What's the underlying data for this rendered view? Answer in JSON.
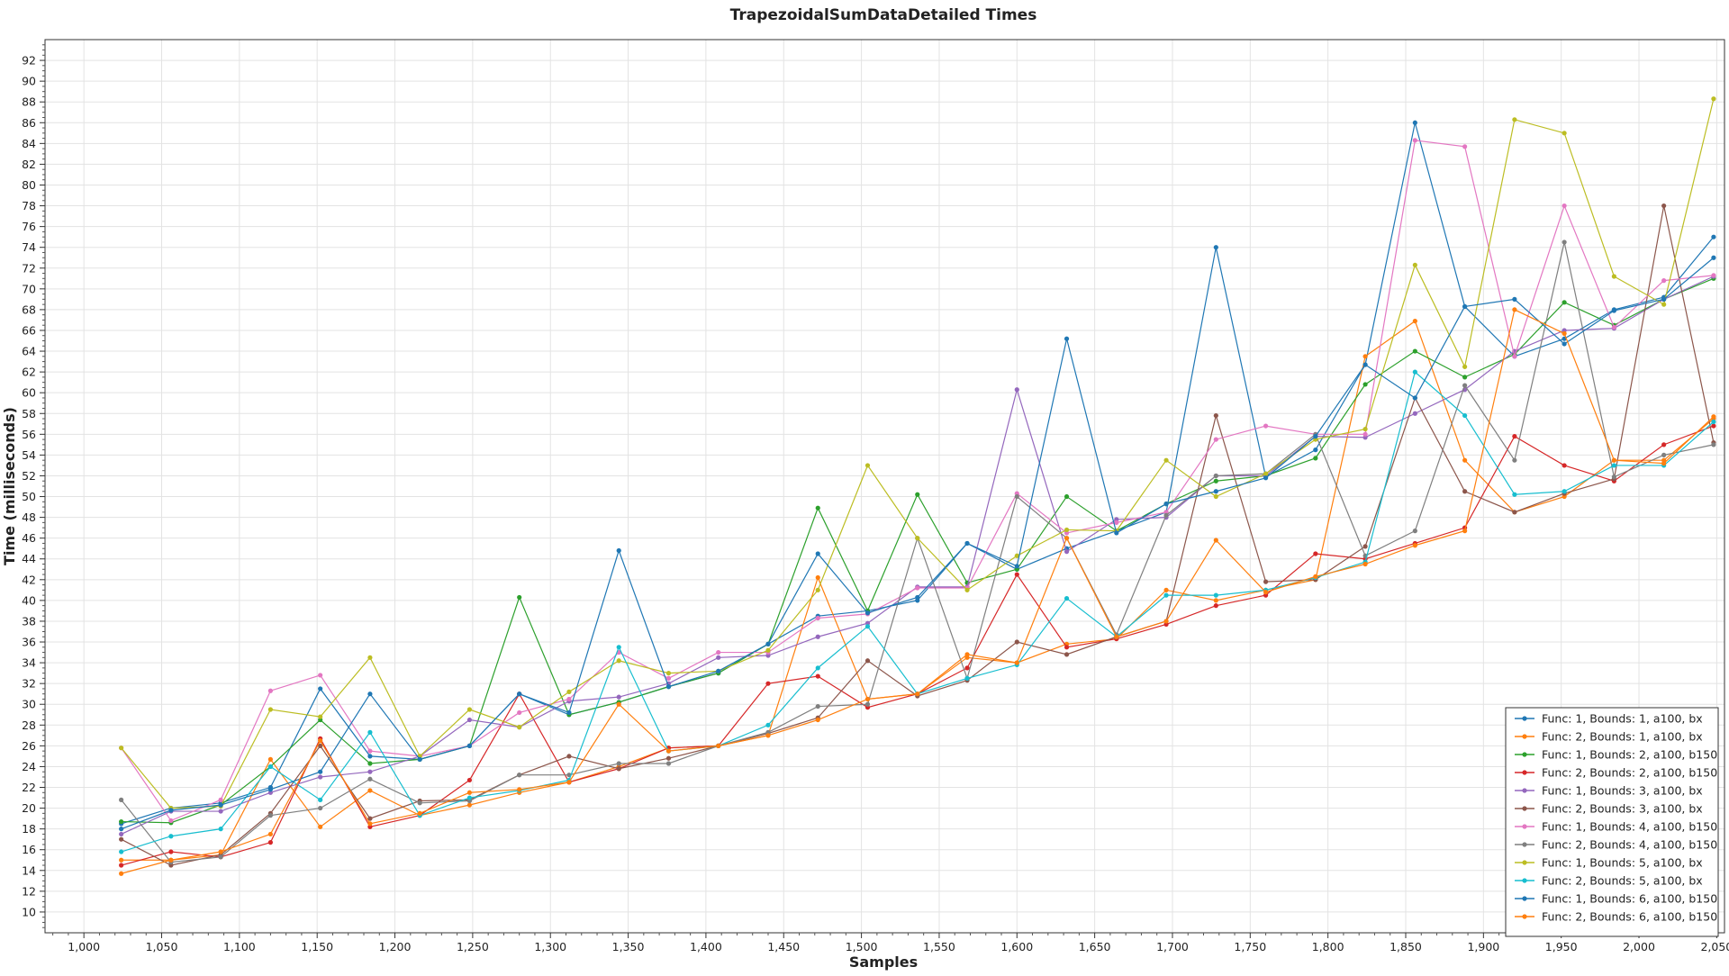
{
  "chart_data": {
    "type": "line",
    "title": "TrapezoidalSumDataDetailed Times",
    "xlabel": "Samples",
    "ylabel": "Time (milliseconds)",
    "xlim": [
      975,
      2055
    ],
    "ylim": [
      8,
      94
    ],
    "x_ticks": [
      1000,
      1050,
      1100,
      1150,
      1200,
      1250,
      1300,
      1350,
      1400,
      1450,
      1500,
      1550,
      1600,
      1650,
      1700,
      1750,
      1800,
      1850,
      1900,
      1950,
      2000,
      2050
    ],
    "x_tick_labels": [
      "1,000",
      "1,050",
      "1,100",
      "1,150",
      "1,200",
      "1,250",
      "1,300",
      "1,350",
      "1,400",
      "1,450",
      "1,500",
      "1,550",
      "1,600",
      "1,650",
      "1,700",
      "1,750",
      "1,800",
      "1,850",
      "1,900",
      "1,950",
      "2,000",
      "2,050"
    ],
    "y_ticks": [
      10,
      12,
      14,
      16,
      18,
      20,
      22,
      24,
      26,
      28,
      30,
      32,
      34,
      36,
      38,
      40,
      42,
      44,
      46,
      48,
      50,
      52,
      54,
      56,
      58,
      60,
      62,
      64,
      66,
      68,
      70,
      72,
      74,
      76,
      78,
      80,
      82,
      84,
      86,
      88,
      90,
      92
    ],
    "grid": true,
    "legend_position": "bottom-right",
    "x": [
      1024,
      1056,
      1088,
      1120,
      1152,
      1184,
      1216,
      1248,
      1280,
      1312,
      1344,
      1376,
      1408,
      1440,
      1472,
      1504,
      1536,
      1568,
      1600,
      1632,
      1664,
      1696,
      1728,
      1760,
      1792,
      1824,
      1856,
      1888,
      1920,
      1952,
      1984,
      2016,
      2048
    ],
    "series": [
      {
        "name": "Func: 1, Bounds: 1, a100, bx",
        "color": "#1f77b4",
        "values": [
          18.5,
          20.0,
          20.5,
          22.0,
          31.5,
          25.0,
          24.7,
          26.0,
          31.0,
          29.0,
          30.2,
          31.7,
          33.0,
          35.8,
          38.5,
          39.0,
          40.0,
          45.5,
          43.0,
          45.0,
          46.7,
          48.5,
          74.0,
          51.9,
          54.5,
          62.7,
          86.0,
          68.3,
          63.5,
          65.2,
          68.0,
          69.2,
          75.0
        ]
      },
      {
        "name": "Func: 2, Bounds: 1, a100, bx",
        "color": "#ff7f0e",
        "values": [
          15.0,
          15.0,
          15.5,
          24.7,
          18.2,
          21.7,
          19.3,
          20.3,
          21.5,
          22.5,
          24.0,
          25.8,
          26.0,
          27.0,
          42.2,
          30.5,
          31.0,
          34.5,
          34.0,
          35.8,
          36.3,
          41.0,
          40.0,
          41.0,
          42.0,
          63.5,
          66.9,
          53.5,
          48.5,
          50.0,
          53.5,
          53.5,
          57.5
        ]
      },
      {
        "name": "Func: 1, Bounds: 2, a100, b150",
        "color": "#2ca02c",
        "values": [
          18.7,
          18.6,
          20.3,
          24.0,
          28.5,
          24.3,
          24.7,
          26.0,
          40.3,
          29.0,
          30.2,
          31.7,
          33.0,
          35.8,
          48.9,
          39.0,
          50.2,
          41.7,
          43.0,
          50.0,
          46.7,
          49.3,
          51.5,
          52.0,
          53.7,
          60.8,
          64.0,
          61.5,
          63.7,
          68.7,
          66.5,
          69.0,
          71.0
        ]
      },
      {
        "name": "Func: 2, Bounds: 2, a100, b150",
        "color": "#d62728",
        "values": [
          14.5,
          15.8,
          15.3,
          16.7,
          26.7,
          18.2,
          19.3,
          22.7,
          31.0,
          22.5,
          23.8,
          25.8,
          26.0,
          32.0,
          32.7,
          29.7,
          31.0,
          33.5,
          42.5,
          35.5,
          36.3,
          37.7,
          39.5,
          40.5,
          44.5,
          44.0,
          45.5,
          47.0,
          55.8,
          53.0,
          51.5,
          55.0,
          56.8
        ]
      },
      {
        "name": "Func: 1, Bounds: 3, a100, bx",
        "color": "#9467bd",
        "values": [
          17.5,
          19.7,
          19.7,
          21.5,
          23.0,
          23.5,
          25.0,
          28.5,
          27.8,
          30.3,
          30.7,
          32.0,
          34.5,
          34.7,
          36.5,
          37.8,
          41.3,
          41.3,
          60.3,
          44.7,
          47.8,
          48.0,
          52.0,
          52.0,
          55.8,
          55.7,
          58.0,
          60.3,
          64.0,
          66.0,
          66.2,
          69.0,
          71.2
        ]
      },
      {
        "name": "Func: 2, Bounds: 3, a100, bx",
        "color": "#8c564b",
        "values": [
          17.0,
          14.5,
          15.5,
          19.5,
          26.0,
          19.0,
          20.7,
          20.8,
          23.2,
          25.0,
          23.8,
          24.8,
          26.0,
          27.2,
          28.7,
          34.2,
          30.8,
          32.3,
          36.0,
          34.8,
          36.5,
          38.0,
          57.8,
          41.8,
          42.0,
          45.2,
          59.5,
          50.5,
          48.5,
          50.3,
          51.7,
          78.0,
          55.2
        ]
      },
      {
        "name": "Func: 1, Bounds: 4, a100, b150",
        "color": "#e377c2",
        "values": [
          25.8,
          18.8,
          20.8,
          31.3,
          32.8,
          25.5,
          25.0,
          26.0,
          29.2,
          30.5,
          35.0,
          32.5,
          35.0,
          35.0,
          38.3,
          38.7,
          41.2,
          41.2,
          50.3,
          46.5,
          47.5,
          48.5,
          55.5,
          56.8,
          56.0,
          56.0,
          84.3,
          83.7,
          63.5,
          78.0,
          66.3,
          70.8,
          71.3
        ]
      },
      {
        "name": "Func: 2, Bounds: 4, a100, b150",
        "color": "#7f7f7f",
        "values": [
          20.8,
          14.8,
          15.3,
          19.3,
          20.0,
          22.8,
          20.5,
          20.7,
          23.2,
          23.2,
          24.3,
          24.3,
          26.0,
          27.3,
          29.8,
          30.0,
          46.0,
          32.5,
          50.0,
          46.0,
          36.7,
          48.2,
          52.0,
          52.2,
          56.0,
          44.3,
          46.7,
          60.7,
          53.5,
          74.5,
          51.9,
          54.0,
          55.0
        ]
      },
      {
        "name": "Func: 1, Bounds: 5, a100, bx",
        "color": "#bcbd22",
        "values": [
          25.8,
          20.0,
          20.2,
          29.5,
          28.8,
          34.5,
          25.0,
          29.5,
          27.8,
          31.2,
          34.2,
          33.0,
          33.2,
          35.2,
          41.0,
          53.0,
          46.0,
          41.0,
          44.3,
          46.8,
          46.7,
          53.5,
          50.0,
          52.2,
          55.5,
          56.5,
          72.3,
          62.5,
          86.3,
          85.0,
          71.2,
          68.5,
          88.3
        ]
      },
      {
        "name": "Func: 2, Bounds: 5, a100, bx",
        "color": "#17becf",
        "values": [
          15.8,
          17.3,
          18.0,
          24.0,
          20.8,
          27.3,
          19.3,
          21.0,
          21.7,
          22.7,
          35.5,
          25.5,
          26.0,
          28.0,
          33.5,
          37.5,
          31.0,
          32.5,
          33.8,
          40.2,
          36.5,
          40.5,
          40.5,
          41.0,
          42.2,
          43.7,
          62.0,
          57.8,
          50.2,
          50.5,
          53.0,
          53.0,
          57.2
        ]
      },
      {
        "name": "Func: 1, Bounds: 6, a100, b150",
        "color": "#1f77b4",
        "values": [
          18.0,
          19.8,
          20.3,
          21.8,
          23.5,
          31.0,
          24.7,
          26.0,
          31.0,
          29.2,
          44.8,
          31.7,
          33.2,
          35.8,
          44.5,
          38.8,
          40.3,
          45.5,
          43.3,
          65.2,
          46.5,
          49.3,
          50.5,
          51.8,
          55.8,
          62.7,
          59.5,
          68.3,
          69.0,
          64.7,
          67.9,
          69.0,
          73.0
        ]
      },
      {
        "name": "Func: 2, Bounds: 6, a100, b150",
        "color": "#ff7f0e",
        "values": [
          13.7,
          15.0,
          15.8,
          17.5,
          26.5,
          18.5,
          19.5,
          21.5,
          21.8,
          22.5,
          30.0,
          25.5,
          26.0,
          27.0,
          28.5,
          30.5,
          31.0,
          34.8,
          34.0,
          46.0,
          36.5,
          38.0,
          45.8,
          40.8,
          42.3,
          43.5,
          45.3,
          46.7,
          68.0,
          65.7,
          53.5,
          53.2,
          57.7
        ]
      }
    ]
  }
}
